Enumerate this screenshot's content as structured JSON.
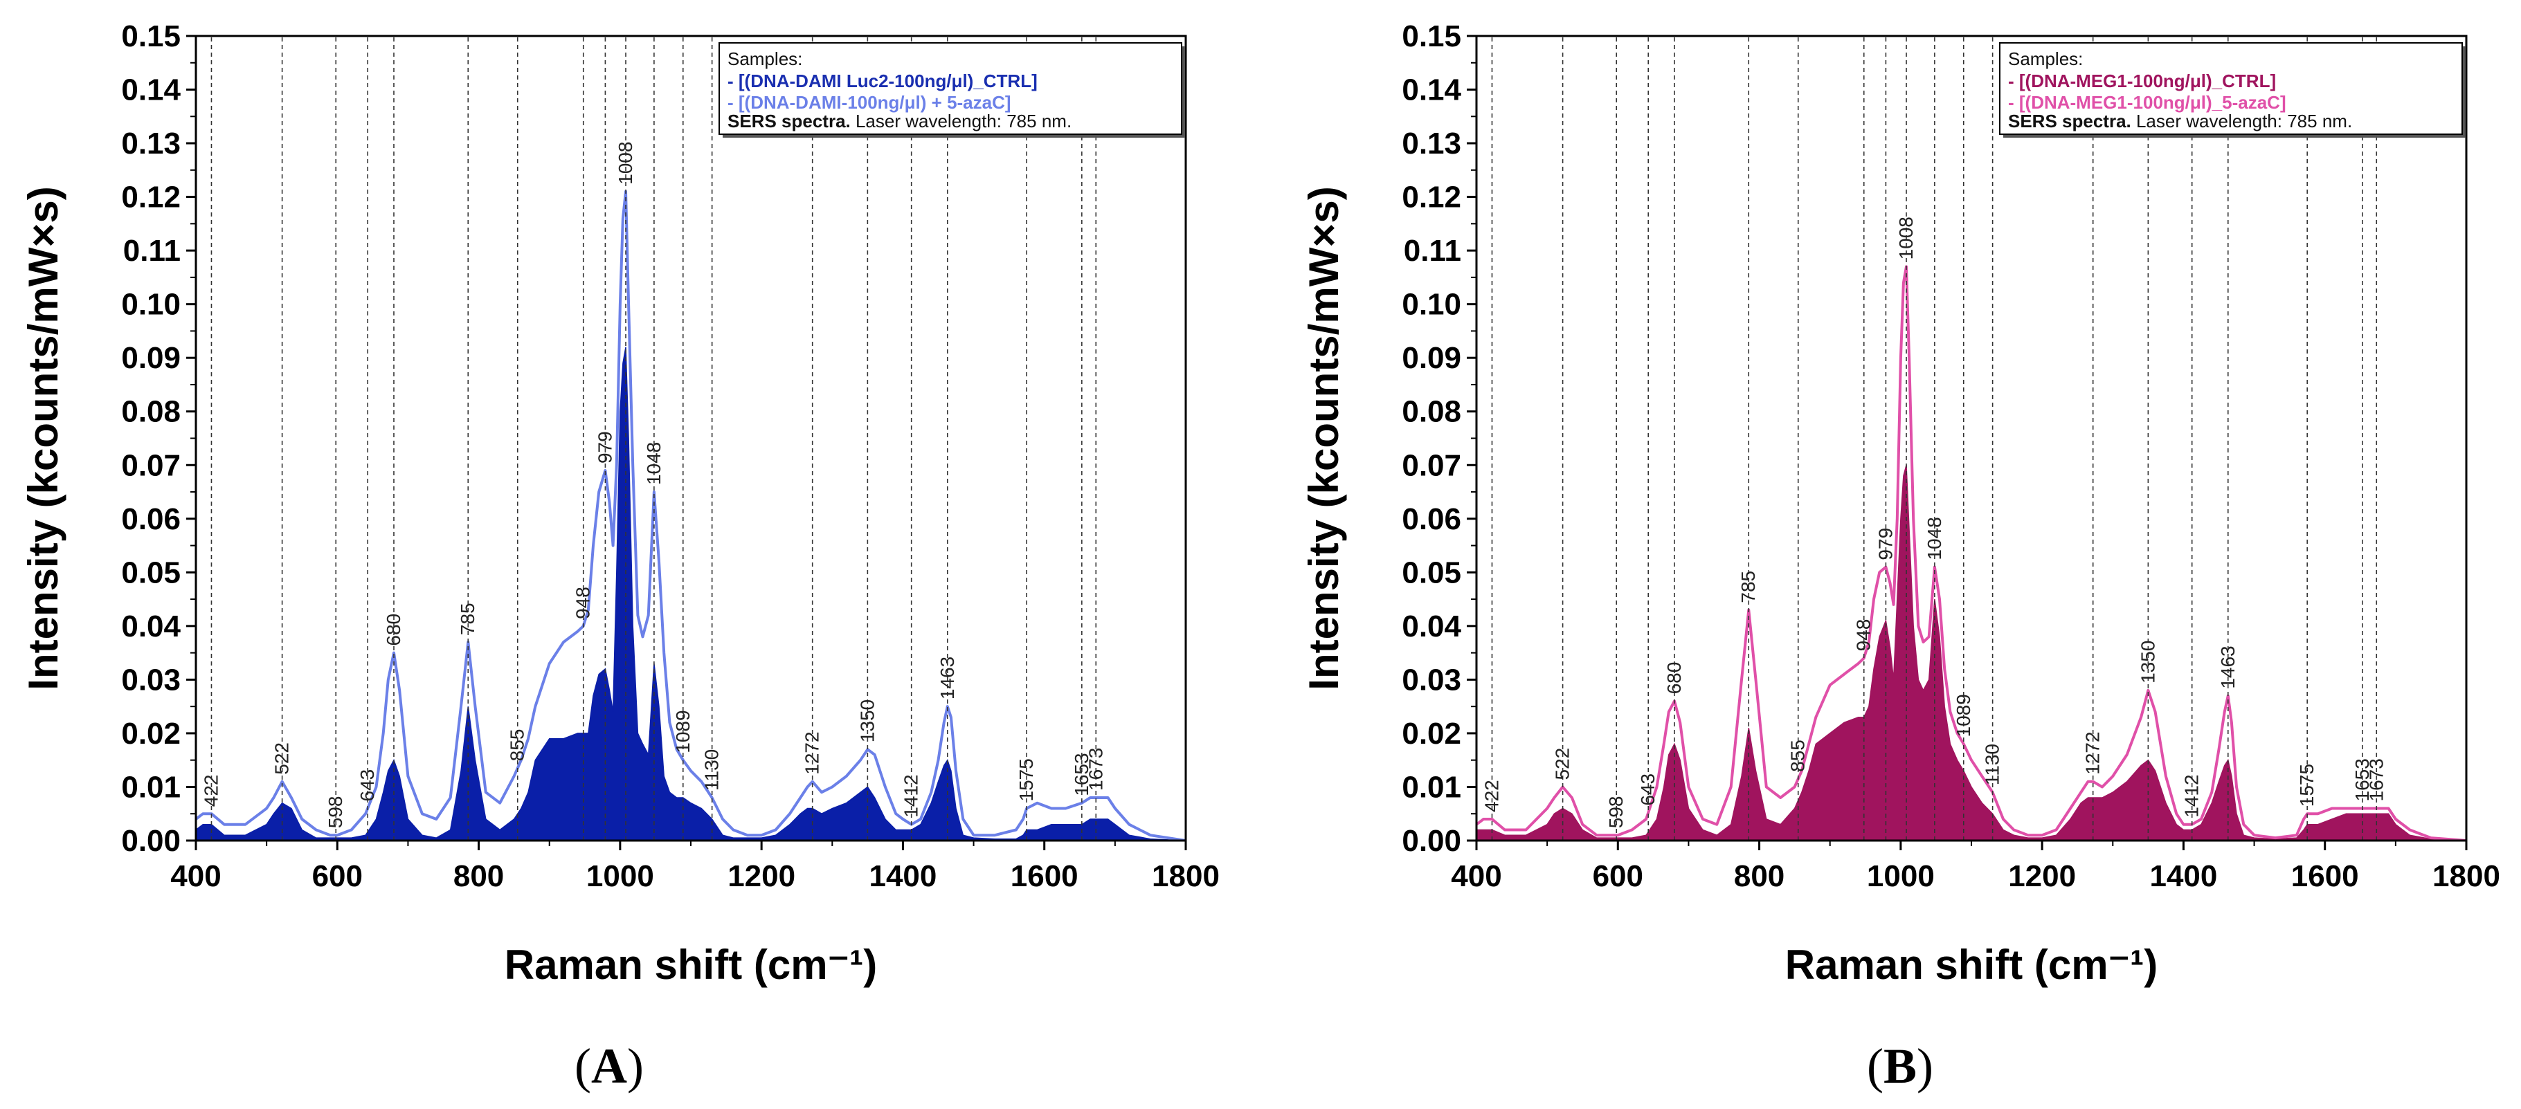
{
  "chart_data": [
    {
      "type": "area",
      "panel_label": "A",
      "xlabel": "Raman shift (cm⁻¹)",
      "ylabel": "Intensity (kcounts/mWxs)",
      "ylabel_text": "Intensity (kcounts/mW×s)",
      "xlim": [
        400,
        1800
      ],
      "ylim": [
        0,
        0.15
      ],
      "xticks": [
        400,
        600,
        800,
        1000,
        1200,
        1400,
        1600,
        1800
      ],
      "yticks": [
        "0.00",
        "0.01",
        "0.02",
        "0.03",
        "0.04",
        "0.05",
        "0.06",
        "0.07",
        "0.08",
        "0.09",
        "0.10",
        "0.11",
        "0.12",
        "0.13",
        "0.14",
        "0.15"
      ],
      "peak_lines": [
        422,
        522,
        598,
        643,
        680,
        785,
        855,
        948,
        979,
        1008,
        1048,
        1089,
        1130,
        1272,
        1350,
        1412,
        1463,
        1575,
        1653,
        1673
      ],
      "legend": {
        "title": "Samples:",
        "entries": [
          {
            "label": "- [(DNA-DAMI Luc2-100ng/μl)_CTRL]",
            "color": "#1a2fb0"
          },
          {
            "label": "- [(DNA-DAMI-100ng/μl) + 5-azaC]",
            "color": "#6b80e8"
          }
        ],
        "note_bold": "SERS spectra.",
        "note": " Laser wavelength: 785 nm."
      },
      "series": [
        {
          "name": "[(DNA-DAMI Luc2-100ng/μl)_CTRL]",
          "style": "filled",
          "color": "#0a1fa8",
          "x": [
            400,
            410,
            422,
            440,
            470,
            500,
            510,
            522,
            535,
            550,
            570,
            590,
            600,
            620,
            640,
            655,
            665,
            672,
            680,
            688,
            700,
            720,
            740,
            760,
            775,
            785,
            795,
            810,
            830,
            850,
            860,
            870,
            880,
            900,
            920,
            940,
            948,
            955,
            962,
            970,
            979,
            985,
            990,
            995,
            1000,
            1004,
            1008,
            1012,
            1018,
            1025,
            1032,
            1040,
            1048,
            1055,
            1062,
            1070,
            1080,
            1089,
            1100,
            1115,
            1130,
            1145,
            1160,
            1180,
            1200,
            1220,
            1240,
            1255,
            1265,
            1272,
            1285,
            1300,
            1320,
            1340,
            1350,
            1360,
            1375,
            1390,
            1400,
            1412,
            1425,
            1440,
            1450,
            1458,
            1463,
            1468,
            1475,
            1485,
            1500,
            1530,
            1560,
            1570,
            1575,
            1590,
            1610,
            1630,
            1653,
            1665,
            1673,
            1680,
            1690,
            1700,
            1720,
            1750,
            1800
          ],
          "y": [
            0.002,
            0.003,
            0.003,
            0.001,
            0.001,
            0.003,
            0.005,
            0.007,
            0.006,
            0.002,
            0.0005,
            0.0005,
            0.0005,
            0.0005,
            0.001,
            0.004,
            0.009,
            0.013,
            0.015,
            0.012,
            0.004,
            0.001,
            0.0005,
            0.002,
            0.013,
            0.025,
            0.015,
            0.004,
            0.002,
            0.004,
            0.006,
            0.009,
            0.015,
            0.019,
            0.019,
            0.02,
            0.02,
            0.02,
            0.027,
            0.031,
            0.032,
            0.028,
            0.024,
            0.05,
            0.08,
            0.089,
            0.092,
            0.075,
            0.04,
            0.02,
            0.018,
            0.016,
            0.033,
            0.025,
            0.012,
            0.009,
            0.008,
            0.008,
            0.007,
            0.006,
            0.004,
            0.001,
            0.0005,
            0.0005,
            0.0005,
            0.001,
            0.003,
            0.005,
            0.006,
            0.006,
            0.005,
            0.006,
            0.007,
            0.009,
            0.01,
            0.008,
            0.004,
            0.002,
            0.002,
            0.002,
            0.003,
            0.007,
            0.011,
            0.014,
            0.015,
            0.013,
            0.006,
            0.001,
            0.0005,
            0.0003,
            0.0003,
            0.001,
            0.002,
            0.002,
            0.003,
            0.003,
            0.003,
            0.004,
            0.004,
            0.004,
            0.004,
            0.003,
            0.001,
            0.0003,
            0
          ]
        },
        {
          "name": "[(DNA-DAMI-100ng/μl) + 5-azaC]",
          "style": "line",
          "color": "#6b80e8",
          "x": [
            400,
            410,
            422,
            440,
            470,
            500,
            510,
            522,
            535,
            550,
            570,
            590,
            600,
            620,
            640,
            655,
            665,
            672,
            680,
            688,
            700,
            720,
            740,
            760,
            775,
            785,
            795,
            810,
            830,
            850,
            860,
            870,
            880,
            900,
            920,
            940,
            948,
            955,
            962,
            970,
            979,
            985,
            990,
            995,
            1000,
            1004,
            1008,
            1012,
            1018,
            1025,
            1032,
            1040,
            1048,
            1055,
            1062,
            1070,
            1080,
            1089,
            1100,
            1115,
            1130,
            1145,
            1160,
            1180,
            1200,
            1220,
            1240,
            1255,
            1265,
            1272,
            1285,
            1300,
            1320,
            1340,
            1350,
            1360,
            1375,
            1390,
            1400,
            1412,
            1425,
            1440,
            1450,
            1458,
            1463,
            1468,
            1475,
            1485,
            1500,
            1530,
            1560,
            1570,
            1575,
            1590,
            1610,
            1630,
            1653,
            1665,
            1673,
            1680,
            1690,
            1700,
            1720,
            1750,
            1800
          ],
          "y": [
            0.004,
            0.005,
            0.005,
            0.003,
            0.003,
            0.006,
            0.008,
            0.011,
            0.008,
            0.004,
            0.002,
            0.001,
            0.001,
            0.002,
            0.005,
            0.01,
            0.02,
            0.03,
            0.035,
            0.028,
            0.012,
            0.005,
            0.004,
            0.008,
            0.025,
            0.037,
            0.025,
            0.009,
            0.007,
            0.012,
            0.015,
            0.019,
            0.025,
            0.033,
            0.037,
            0.039,
            0.04,
            0.043,
            0.055,
            0.065,
            0.069,
            0.063,
            0.055,
            0.07,
            0.1,
            0.116,
            0.121,
            0.1,
            0.07,
            0.042,
            0.038,
            0.042,
            0.065,
            0.052,
            0.035,
            0.022,
            0.017,
            0.015,
            0.013,
            0.011,
            0.008,
            0.004,
            0.002,
            0.001,
            0.001,
            0.002,
            0.005,
            0.008,
            0.01,
            0.011,
            0.009,
            0.01,
            0.012,
            0.015,
            0.017,
            0.016,
            0.01,
            0.005,
            0.004,
            0.003,
            0.004,
            0.009,
            0.015,
            0.022,
            0.025,
            0.023,
            0.013,
            0.004,
            0.001,
            0.001,
            0.002,
            0.004,
            0.006,
            0.007,
            0.006,
            0.006,
            0.007,
            0.008,
            0.008,
            0.008,
            0.008,
            0.006,
            0.003,
            0.001,
            0
          ]
        }
      ]
    },
    {
      "type": "area",
      "panel_label": "B",
      "xlabel": "Raman shift (cm⁻¹)",
      "ylabel": "Intensity (kcounts/mWxs)",
      "ylabel_text": "Intensity (kcounts/mW×s)",
      "xlim": [
        400,
        1800
      ],
      "ylim": [
        0,
        0.15
      ],
      "xticks": [
        400,
        600,
        800,
        1000,
        1200,
        1400,
        1600,
        1800
      ],
      "yticks": [
        "0.00",
        "0.01",
        "0.02",
        "0.03",
        "0.04",
        "0.05",
        "0.06",
        "0.07",
        "0.08",
        "0.09",
        "0.10",
        "0.11",
        "0.12",
        "0.13",
        "0.14",
        "0.15"
      ],
      "peak_lines": [
        422,
        522,
        598,
        643,
        680,
        785,
        855,
        948,
        979,
        1008,
        1048,
        1089,
        1130,
        1272,
        1350,
        1412,
        1463,
        1575,
        1653,
        1673
      ],
      "legend": {
        "title": "Samples:",
        "entries": [
          {
            "label": "- [(DNA-MEG1-100ng/μl)_CTRL]",
            "color": "#a0145e"
          },
          {
            "label": "- [(DNA-MEG1-100ng/μl)_5-azaC]",
            "color": "#e050a8"
          }
        ],
        "note_bold": "SERS spectra.",
        "note": " Laser wavelength: 785 nm."
      },
      "series": [
        {
          "name": "[(DNA-MEG1-100ng/μl)_CTRL]",
          "style": "filled",
          "color": "#a0145e",
          "x": [
            400,
            410,
            422,
            440,
            470,
            500,
            510,
            522,
            535,
            550,
            570,
            590,
            600,
            620,
            640,
            655,
            665,
            672,
            680,
            688,
            700,
            720,
            740,
            760,
            775,
            785,
            795,
            810,
            830,
            850,
            860,
            870,
            880,
            900,
            920,
            940,
            948,
            955,
            962,
            970,
            979,
            985,
            990,
            995,
            1000,
            1004,
            1008,
            1012,
            1018,
            1025,
            1032,
            1040,
            1048,
            1055,
            1062,
            1070,
            1080,
            1089,
            1100,
            1115,
            1130,
            1145,
            1160,
            1180,
            1200,
            1220,
            1240,
            1255,
            1265,
            1272,
            1285,
            1300,
            1320,
            1340,
            1350,
            1360,
            1375,
            1390,
            1400,
            1412,
            1425,
            1440,
            1450,
            1458,
            1463,
            1468,
            1475,
            1485,
            1500,
            1530,
            1560,
            1570,
            1575,
            1590,
            1610,
            1630,
            1653,
            1665,
            1673,
            1680,
            1690,
            1700,
            1720,
            1750,
            1800
          ],
          "y": [
            0.002,
            0.002,
            0.002,
            0.001,
            0.001,
            0.003,
            0.005,
            0.006,
            0.005,
            0.002,
            0.0005,
            0.0005,
            0.0005,
            0.0005,
            0.001,
            0.004,
            0.01,
            0.016,
            0.018,
            0.015,
            0.006,
            0.002,
            0.001,
            0.003,
            0.012,
            0.021,
            0.013,
            0.004,
            0.003,
            0.006,
            0.009,
            0.013,
            0.018,
            0.02,
            0.022,
            0.023,
            0.023,
            0.025,
            0.032,
            0.038,
            0.041,
            0.036,
            0.03,
            0.045,
            0.06,
            0.068,
            0.07,
            0.058,
            0.04,
            0.03,
            0.028,
            0.03,
            0.045,
            0.038,
            0.025,
            0.018,
            0.015,
            0.013,
            0.01,
            0.007,
            0.005,
            0.002,
            0.001,
            0.0005,
            0.0005,
            0.001,
            0.004,
            0.007,
            0.008,
            0.008,
            0.008,
            0.009,
            0.011,
            0.014,
            0.015,
            0.013,
            0.007,
            0.003,
            0.002,
            0.002,
            0.003,
            0.007,
            0.011,
            0.014,
            0.015,
            0.012,
            0.005,
            0.001,
            0.0005,
            0.0003,
            0.0005,
            0.002,
            0.003,
            0.003,
            0.004,
            0.005,
            0.005,
            0.005,
            0.005,
            0.005,
            0.005,
            0.003,
            0.001,
            0.0003,
            0
          ]
        },
        {
          "name": "[(DNA-MEG1-100ng/μl)_5-azaC]",
          "style": "line",
          "color": "#e050a8",
          "x": [
            400,
            410,
            422,
            440,
            470,
            500,
            510,
            522,
            535,
            550,
            570,
            590,
            600,
            620,
            640,
            655,
            665,
            672,
            680,
            688,
            700,
            720,
            740,
            760,
            775,
            785,
            795,
            810,
            830,
            850,
            860,
            870,
            880,
            900,
            920,
            940,
            948,
            955,
            962,
            970,
            979,
            985,
            990,
            995,
            1000,
            1004,
            1008,
            1012,
            1018,
            1025,
            1032,
            1040,
            1048,
            1055,
            1062,
            1070,
            1080,
            1089,
            1100,
            1115,
            1130,
            1145,
            1160,
            1180,
            1200,
            1220,
            1240,
            1255,
            1265,
            1272,
            1285,
            1300,
            1320,
            1340,
            1350,
            1360,
            1375,
            1390,
            1400,
            1412,
            1425,
            1440,
            1450,
            1458,
            1463,
            1468,
            1475,
            1485,
            1500,
            1530,
            1560,
            1570,
            1575,
            1590,
            1610,
            1630,
            1653,
            1665,
            1673,
            1680,
            1690,
            1700,
            1720,
            1750,
            1800
          ],
          "y": [
            0.003,
            0.004,
            0.004,
            0.002,
            0.002,
            0.006,
            0.008,
            0.01,
            0.008,
            0.003,
            0.001,
            0.001,
            0.001,
            0.002,
            0.004,
            0.01,
            0.018,
            0.024,
            0.026,
            0.022,
            0.01,
            0.004,
            0.003,
            0.01,
            0.03,
            0.043,
            0.03,
            0.01,
            0.008,
            0.01,
            0.013,
            0.018,
            0.023,
            0.029,
            0.031,
            0.033,
            0.034,
            0.037,
            0.045,
            0.05,
            0.051,
            0.048,
            0.044,
            0.06,
            0.09,
            0.104,
            0.107,
            0.09,
            0.06,
            0.04,
            0.037,
            0.038,
            0.051,
            0.045,
            0.032,
            0.024,
            0.02,
            0.018,
            0.015,
            0.012,
            0.009,
            0.004,
            0.002,
            0.001,
            0.001,
            0.002,
            0.006,
            0.009,
            0.011,
            0.011,
            0.01,
            0.012,
            0.016,
            0.023,
            0.028,
            0.024,
            0.012,
            0.005,
            0.003,
            0.003,
            0.004,
            0.009,
            0.017,
            0.024,
            0.027,
            0.022,
            0.01,
            0.003,
            0.001,
            0.0005,
            0.001,
            0.004,
            0.005,
            0.005,
            0.006,
            0.006,
            0.006,
            0.006,
            0.006,
            0.006,
            0.006,
            0.004,
            0.002,
            0.0005,
            0
          ]
        }
      ]
    }
  ]
}
